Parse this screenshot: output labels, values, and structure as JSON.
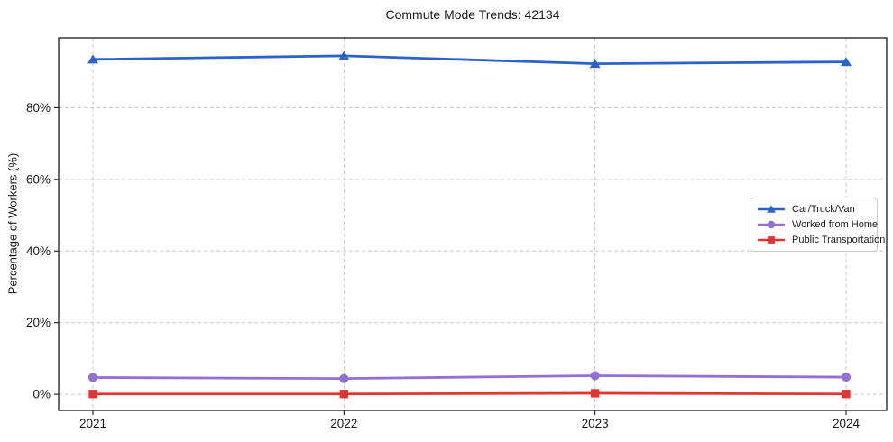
{
  "chart_data": {
    "type": "line",
    "title": "Commute Mode Trends: 42134",
    "xlabel": "",
    "ylabel": "Percentage of Workers (%)",
    "categories": [
      "2021",
      "2022",
      "2023",
      "2024"
    ],
    "series": [
      {
        "name": "Car/Truck/Van",
        "color": "#2b63c9",
        "marker": "triangle",
        "values": [
          93.5,
          94.5,
          92.3,
          92.8
        ]
      },
      {
        "name": "Worked from Home",
        "color": "#9570d4",
        "marker": "circle",
        "values": [
          4.7,
          4.4,
          5.2,
          4.8
        ]
      },
      {
        "name": "Public Transportation",
        "color": "#e03535",
        "marker": "square",
        "values": [
          0.1,
          0.1,
          0.3,
          0.1
        ]
      }
    ],
    "yticks": [
      {
        "value": 0,
        "label": "0%"
      },
      {
        "value": 20,
        "label": "20%"
      },
      {
        "value": 40,
        "label": "40%"
      },
      {
        "value": 60,
        "label": "60%"
      },
      {
        "value": 80,
        "label": "80%"
      }
    ],
    "ylim": [
      -4.5,
      99.5
    ],
    "grid": true,
    "grid_style": "dashed",
    "legend_position": "center-right"
  },
  "colors": {
    "background": "#ffffff",
    "grid": "#c9c9c9",
    "axis": "#1a1a1a",
    "text": "#1a1a1a",
    "legend_border": "#cccccc"
  }
}
